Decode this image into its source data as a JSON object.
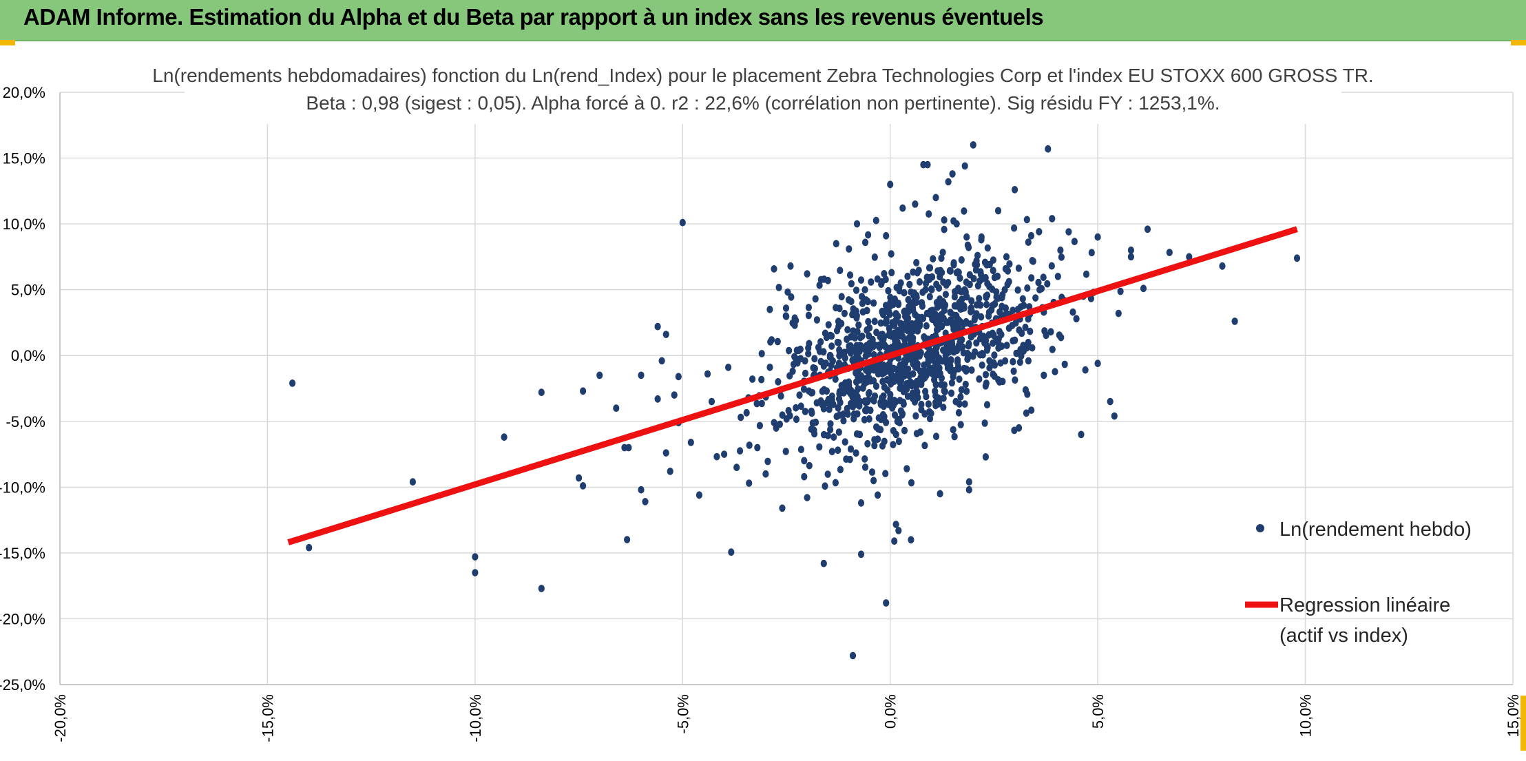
{
  "header": {
    "title": "ADAM Informe. Estimation du Alpha et du Beta par rapport à un index sans les revenus éventuels"
  },
  "colors": {
    "banner": "#86c77c",
    "accent": "#f2b705",
    "points": "#1f3d6e",
    "regression": "#ee1111",
    "grid": "#d9d9d9"
  },
  "chart_data": {
    "type": "scatter",
    "title": "Ln(rendements hebdomadaires) fonction du Ln(rend_Index) pour le placement Zebra Technologies Corp et l'index EU STOXX 600 GROSS TR.",
    "subtitle": "Beta : 0,98 (sigest : 0,05). Alpha forcé à 0. r2 : 22,6% (corrélation non pertinente). Sig résidu FY : 1253,1%.",
    "xlim": [
      -20,
      15
    ],
    "ylim": [
      -25,
      20
    ],
    "x_ticks": [
      "-20,0%",
      "-15,0%",
      "-10,0%",
      "-5,0%",
      "0,0%",
      "5,0%",
      "10,0%",
      "15,0%"
    ],
    "y_ticks": [
      "20,0%",
      "15,0%",
      "10,0%",
      "5,0%",
      "0,0%",
      "-5,0%",
      "-10,0%",
      "-15,0%",
      "-20,0%",
      "-25,0%"
    ],
    "grid": true,
    "legend_position": "right",
    "series": [
      {
        "name": "Ln(rendement hebdo)",
        "kind": "scatter",
        "points": [
          [
            -14.4,
            -2.1
          ],
          [
            -14.0,
            -14.6
          ],
          [
            -11.5,
            -9.6
          ],
          [
            -10.0,
            -15.3
          ],
          [
            -10.0,
            -16.5
          ],
          [
            -9.3,
            -6.2
          ],
          [
            -8.4,
            -2.8
          ],
          [
            -8.4,
            -17.7
          ],
          [
            -7.5,
            -9.3
          ],
          [
            -7.4,
            -9.9
          ],
          [
            -7.4,
            -2.7
          ],
          [
            -7.0,
            -1.5
          ],
          [
            -6.6,
            -4.0
          ],
          [
            -6.4,
            -7.0
          ],
          [
            -6.3,
            -7.0
          ],
          [
            -6.0,
            -1.5
          ],
          [
            -6.0,
            -10.2
          ],
          [
            -5.9,
            -11.1
          ],
          [
            -5.6,
            -3.3
          ],
          [
            -5.6,
            2.2
          ],
          [
            -5.5,
            -0.4
          ],
          [
            -5.4,
            -7.4
          ],
          [
            -5.4,
            1.6
          ],
          [
            -5.3,
            -8.8
          ],
          [
            -5.2,
            -3.0
          ],
          [
            -5.1,
            -1.6
          ],
          [
            -5.1,
            -5.1
          ],
          [
            -5.0,
            10.1
          ],
          [
            -4.8,
            -6.6
          ],
          [
            -4.6,
            -10.6
          ],
          [
            -4.4,
            -1.4
          ],
          [
            -4.3,
            -3.5
          ],
          [
            -4.0,
            -7.5
          ],
          [
            -3.9,
            -0.9
          ],
          [
            -3.7,
            -8.5
          ],
          [
            -3.6,
            -4.7
          ],
          [
            -3.4,
            -9.7
          ],
          [
            -3.2,
            -7.0
          ],
          [
            -3.0,
            -9.0
          ],
          [
            -2.9,
            3.5
          ],
          [
            -2.7,
            -2.0
          ],
          [
            -2.6,
            -11.6
          ],
          [
            -2.4,
            6.8
          ],
          [
            -2.3,
            2.3
          ],
          [
            -2.0,
            6.2
          ],
          [
            -2.0,
            -10.8
          ],
          [
            -1.9,
            -5.6
          ],
          [
            -1.8,
            4.3
          ],
          [
            -1.6,
            -15.8
          ],
          [
            -1.5,
            5.7
          ],
          [
            -1.4,
            -7.3
          ],
          [
            -1.3,
            8.5
          ],
          [
            -1.1,
            3.2
          ],
          [
            -0.8,
            10.0
          ],
          [
            -0.7,
            -11.2
          ],
          [
            -0.7,
            -15.1
          ],
          [
            -0.6,
            8.6
          ],
          [
            -0.5,
            2.1
          ],
          [
            -0.4,
            -9.5
          ],
          [
            -0.3,
            -10.6
          ],
          [
            -0.2,
            5.6
          ],
          [
            -0.1,
            9.1
          ],
          [
            0.0,
            13.0
          ],
          [
            0.1,
            -14.1
          ],
          [
            0.2,
            -13.3
          ],
          [
            0.3,
            11.2
          ],
          [
            0.4,
            -8.6
          ],
          [
            0.5,
            -14.0
          ],
          [
            0.6,
            11.5
          ],
          [
            0.8,
            14.5
          ],
          [
            0.9,
            14.5
          ],
          [
            1.1,
            12.0
          ],
          [
            1.2,
            -10.5
          ],
          [
            1.3,
            10.3
          ],
          [
            1.4,
            13.2
          ],
          [
            1.5,
            13.8
          ],
          [
            1.6,
            10.0
          ],
          [
            1.8,
            14.4
          ],
          [
            1.9,
            -9.6
          ],
          [
            1.9,
            -10.2
          ],
          [
            2.0,
            16.0
          ],
          [
            2.2,
            9.0
          ],
          [
            2.3,
            -7.7
          ],
          [
            2.6,
            11.0
          ],
          [
            2.8,
            7.5
          ],
          [
            3.0,
            12.6
          ],
          [
            3.1,
            -5.5
          ],
          [
            3.4,
            5.9
          ],
          [
            3.7,
            -1.5
          ],
          [
            3.8,
            15.7
          ],
          [
            3.9,
            10.4
          ],
          [
            4.1,
            8.0
          ],
          [
            4.3,
            9.4
          ],
          [
            4.4,
            3.3
          ],
          [
            4.6,
            -6.0
          ],
          [
            4.7,
            -1.1
          ],
          [
            4.9,
            4.8
          ],
          [
            5.0,
            9.0
          ],
          [
            5.0,
            -0.6
          ],
          [
            5.3,
            -3.5
          ],
          [
            5.4,
            -4.6
          ],
          [
            5.5,
            3.2
          ],
          [
            5.8,
            7.5
          ],
          [
            5.8,
            8.0
          ],
          [
            6.1,
            5.1
          ],
          [
            6.2,
            9.6
          ],
          [
            7.2,
            7.5
          ],
          [
            8.0,
            6.8
          ],
          [
            8.3,
            2.6
          ],
          [
            9.8,
            7.4
          ],
          [
            -0.9,
            -22.8
          ],
          [
            -0.1,
            -18.8
          ],
          [
            3.6,
            5.0
          ],
          [
            -1.6,
            -0.8
          ]
        ],
        "cloud": {
          "count": 1120,
          "x_center": 0.5,
          "x_sd": 1.6,
          "beta": 0.98,
          "resid_sd": 3.2,
          "seed": 7
        }
      },
      {
        "name": "Regression linéaire (actif vs index)",
        "kind": "line",
        "x": [
          -14.5,
          9.8
        ],
        "y": [
          -14.2,
          9.6
        ]
      }
    ]
  },
  "legend": {
    "scatter_label": "Ln(rendement hebdo)",
    "line_label_1": "Regression linéaire",
    "line_label_2": "(actif vs index)"
  }
}
